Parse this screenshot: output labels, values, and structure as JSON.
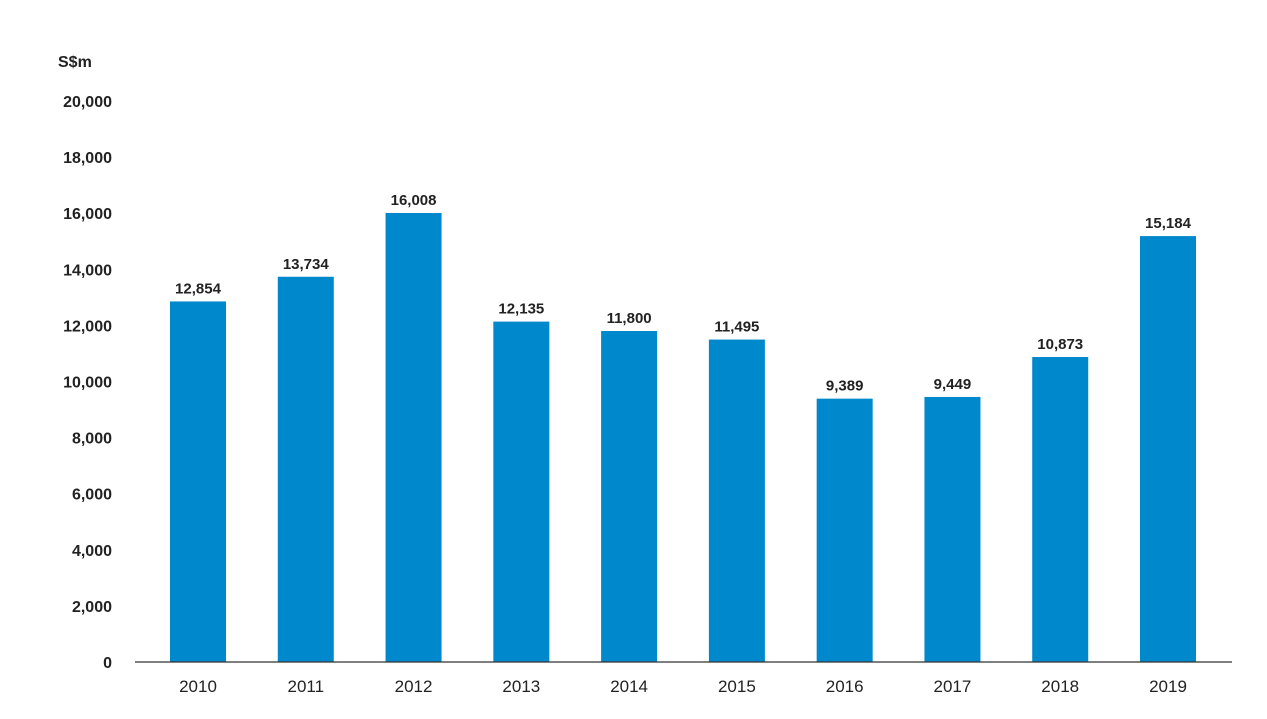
{
  "chart_data": {
    "type": "bar",
    "unit_label": "S$m",
    "categories": [
      "2010",
      "2011",
      "2012",
      "2013",
      "2014",
      "2015",
      "2016",
      "2017",
      "2018",
      "2019"
    ],
    "values": [
      12854,
      13734,
      16008,
      12135,
      11800,
      11495,
      9389,
      9449,
      10873,
      15184
    ],
    "value_labels": [
      "12,854",
      "13,734",
      "16,008",
      "12,135",
      "11,800",
      "11,495",
      "9,389",
      "9,449",
      "10,873",
      "15,184"
    ],
    "yticks": [
      0,
      2000,
      4000,
      6000,
      8000,
      10000,
      12000,
      14000,
      16000,
      18000,
      20000
    ],
    "ytick_labels": [
      "0",
      "2,000",
      "4,000",
      "6,000",
      "8,000",
      "10,000",
      "12,000",
      "14,000",
      "16,000",
      "18,000",
      "20,000"
    ],
    "ylim": [
      0,
      20000
    ],
    "bar_color": "#0088cc",
    "grid": false,
    "title": "",
    "xlabel": "",
    "ylabel": ""
  }
}
